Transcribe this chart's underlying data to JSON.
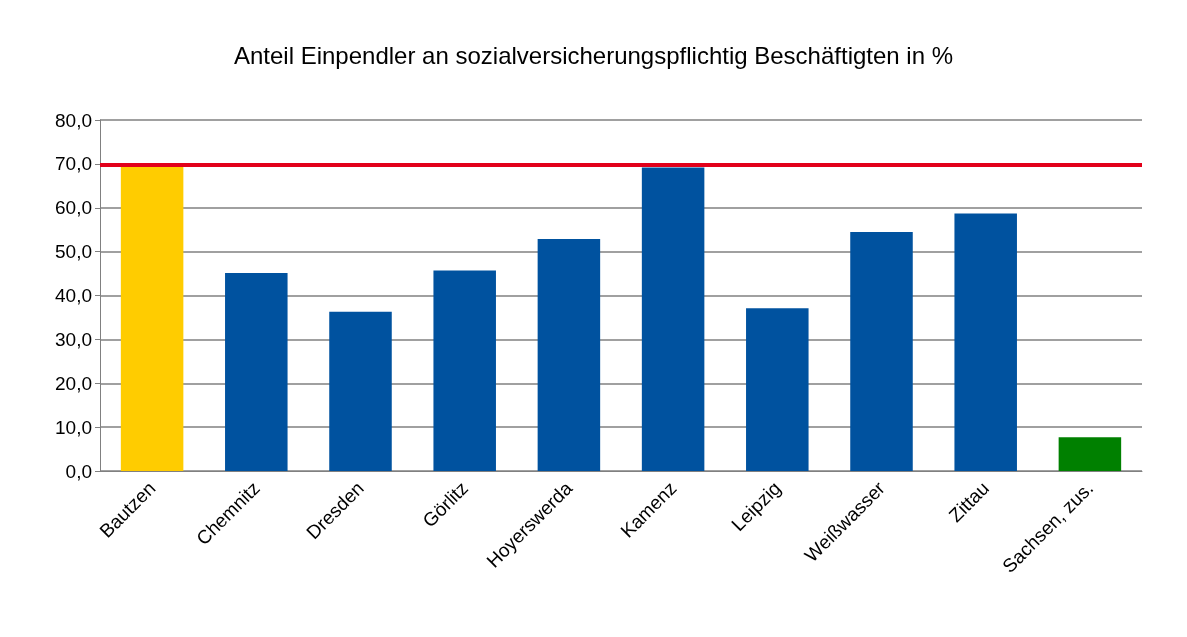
{
  "chart_data": {
    "type": "bar",
    "title": "Anteil Einpendler an sozialversicherungspflichtig Beschäftigten in %",
    "categories": [
      "Bautzen",
      "Chemnitz",
      "Dresden",
      "Görlitz",
      "Hoyerswerda",
      "Kamenz",
      "Leipzig",
      "Weißwasser",
      "Zittau",
      "Sachsen, zus."
    ],
    "values": [
      69.7,
      45.1,
      36.3,
      45.7,
      52.9,
      69.2,
      37.1,
      54.5,
      58.7,
      7.7
    ],
    "colors": [
      "#ffcc00",
      "#00529f",
      "#00529f",
      "#00529f",
      "#00529f",
      "#00529f",
      "#00529f",
      "#00529f",
      "#00529f",
      "#008000"
    ],
    "ylim": [
      0,
      80
    ],
    "yticks": [
      {
        "value": 0,
        "label": "0,0"
      },
      {
        "value": 10,
        "label": "10,0"
      },
      {
        "value": 20,
        "label": "20,0"
      },
      {
        "value": 30,
        "label": "30,0"
      },
      {
        "value": 40,
        "label": "40,0"
      },
      {
        "value": 50,
        "label": "50,0"
      },
      {
        "value": 60,
        "label": "60,0"
      },
      {
        "value": 70,
        "label": "70,0"
      },
      {
        "value": 80,
        "label": "80,0"
      }
    ],
    "ref_lines": [
      {
        "axis": "y",
        "value": 69.7,
        "color": "#e2001a"
      }
    ],
    "grid": "y"
  }
}
